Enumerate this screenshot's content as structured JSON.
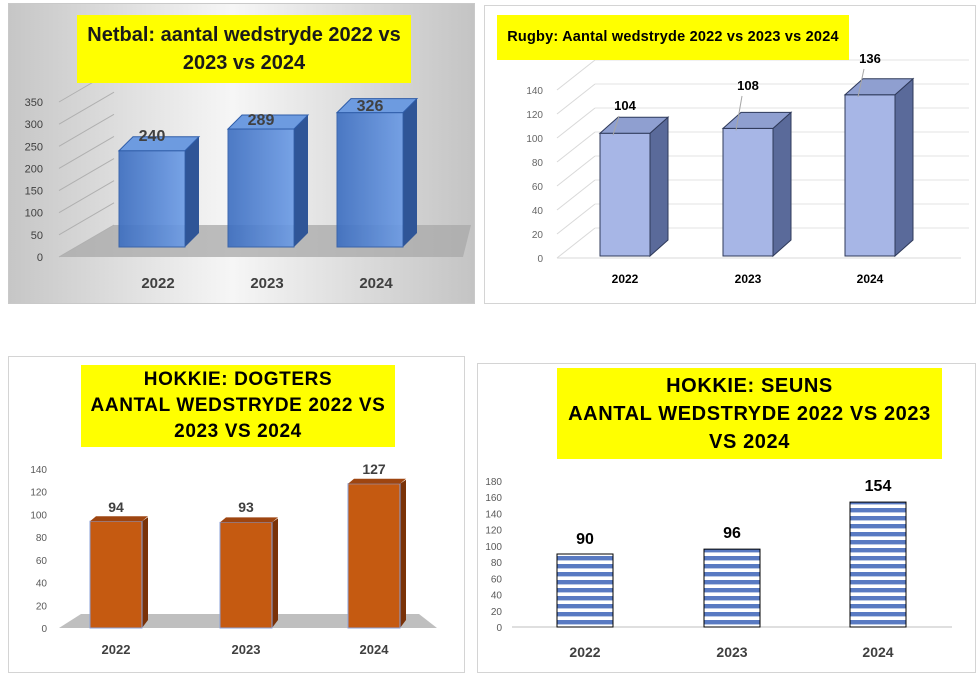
{
  "colors": {
    "title_bg": "#ffff00",
    "netball_bar": "#4a7fd1",
    "rugby_bar": "#a7b6e6",
    "hockey_girls_bar": "#c55a11",
    "hockey_boys_bar": "#3c63b8"
  },
  "chart_data": [
    {
      "id": "netball",
      "type": "bar",
      "title": "Netbal:  aantal wedstryde 2022 vs 2023 vs 2024",
      "categories": [
        "2022",
        "2023",
        "2024"
      ],
      "values": [
        240,
        289,
        326
      ],
      "yticks": [
        "0",
        "50",
        "100",
        "150",
        "200",
        "250",
        "300",
        "350"
      ],
      "ylim": [
        0,
        350
      ],
      "grid": true,
      "legend": "none"
    },
    {
      "id": "rugby",
      "type": "bar",
      "title": "Rugby:  Aantal wedstryde 2022 vs 2023 vs 2024",
      "categories": [
        "2022",
        "2023",
        "2024"
      ],
      "values": [
        104,
        108,
        136
      ],
      "yticks": [
        "0",
        "20",
        "40",
        "60",
        "80",
        "100",
        "120",
        "140"
      ],
      "ylim": [
        0,
        140
      ],
      "grid": true,
      "legend": "none"
    },
    {
      "id": "hockey_girls",
      "type": "bar",
      "title": "HOKKIE:  DOGTERS\nAANTAL WEDSTRYDE 2022 VS 2023 VS 2024",
      "categories": [
        "2022",
        "2023",
        "2024"
      ],
      "values": [
        94,
        93,
        127
      ],
      "yticks": [
        "0",
        "20",
        "40",
        "60",
        "80",
        "100",
        "120",
        "140"
      ],
      "ylim": [
        0,
        140
      ],
      "grid": false,
      "legend": "none"
    },
    {
      "id": "hockey_boys",
      "type": "bar",
      "title": "HOKKIE:  SEUNS\nAANTAL WEDSTRYDE 2022 VS 2023 VS 2024",
      "categories": [
        "2022",
        "2023",
        "2024"
      ],
      "values": [
        90,
        96,
        154
      ],
      "yticks": [
        "0",
        "20",
        "40",
        "60",
        "80",
        "100",
        "120",
        "140",
        "160",
        "180"
      ],
      "ylim": [
        0,
        180
      ],
      "grid": false,
      "legend": "none"
    }
  ]
}
